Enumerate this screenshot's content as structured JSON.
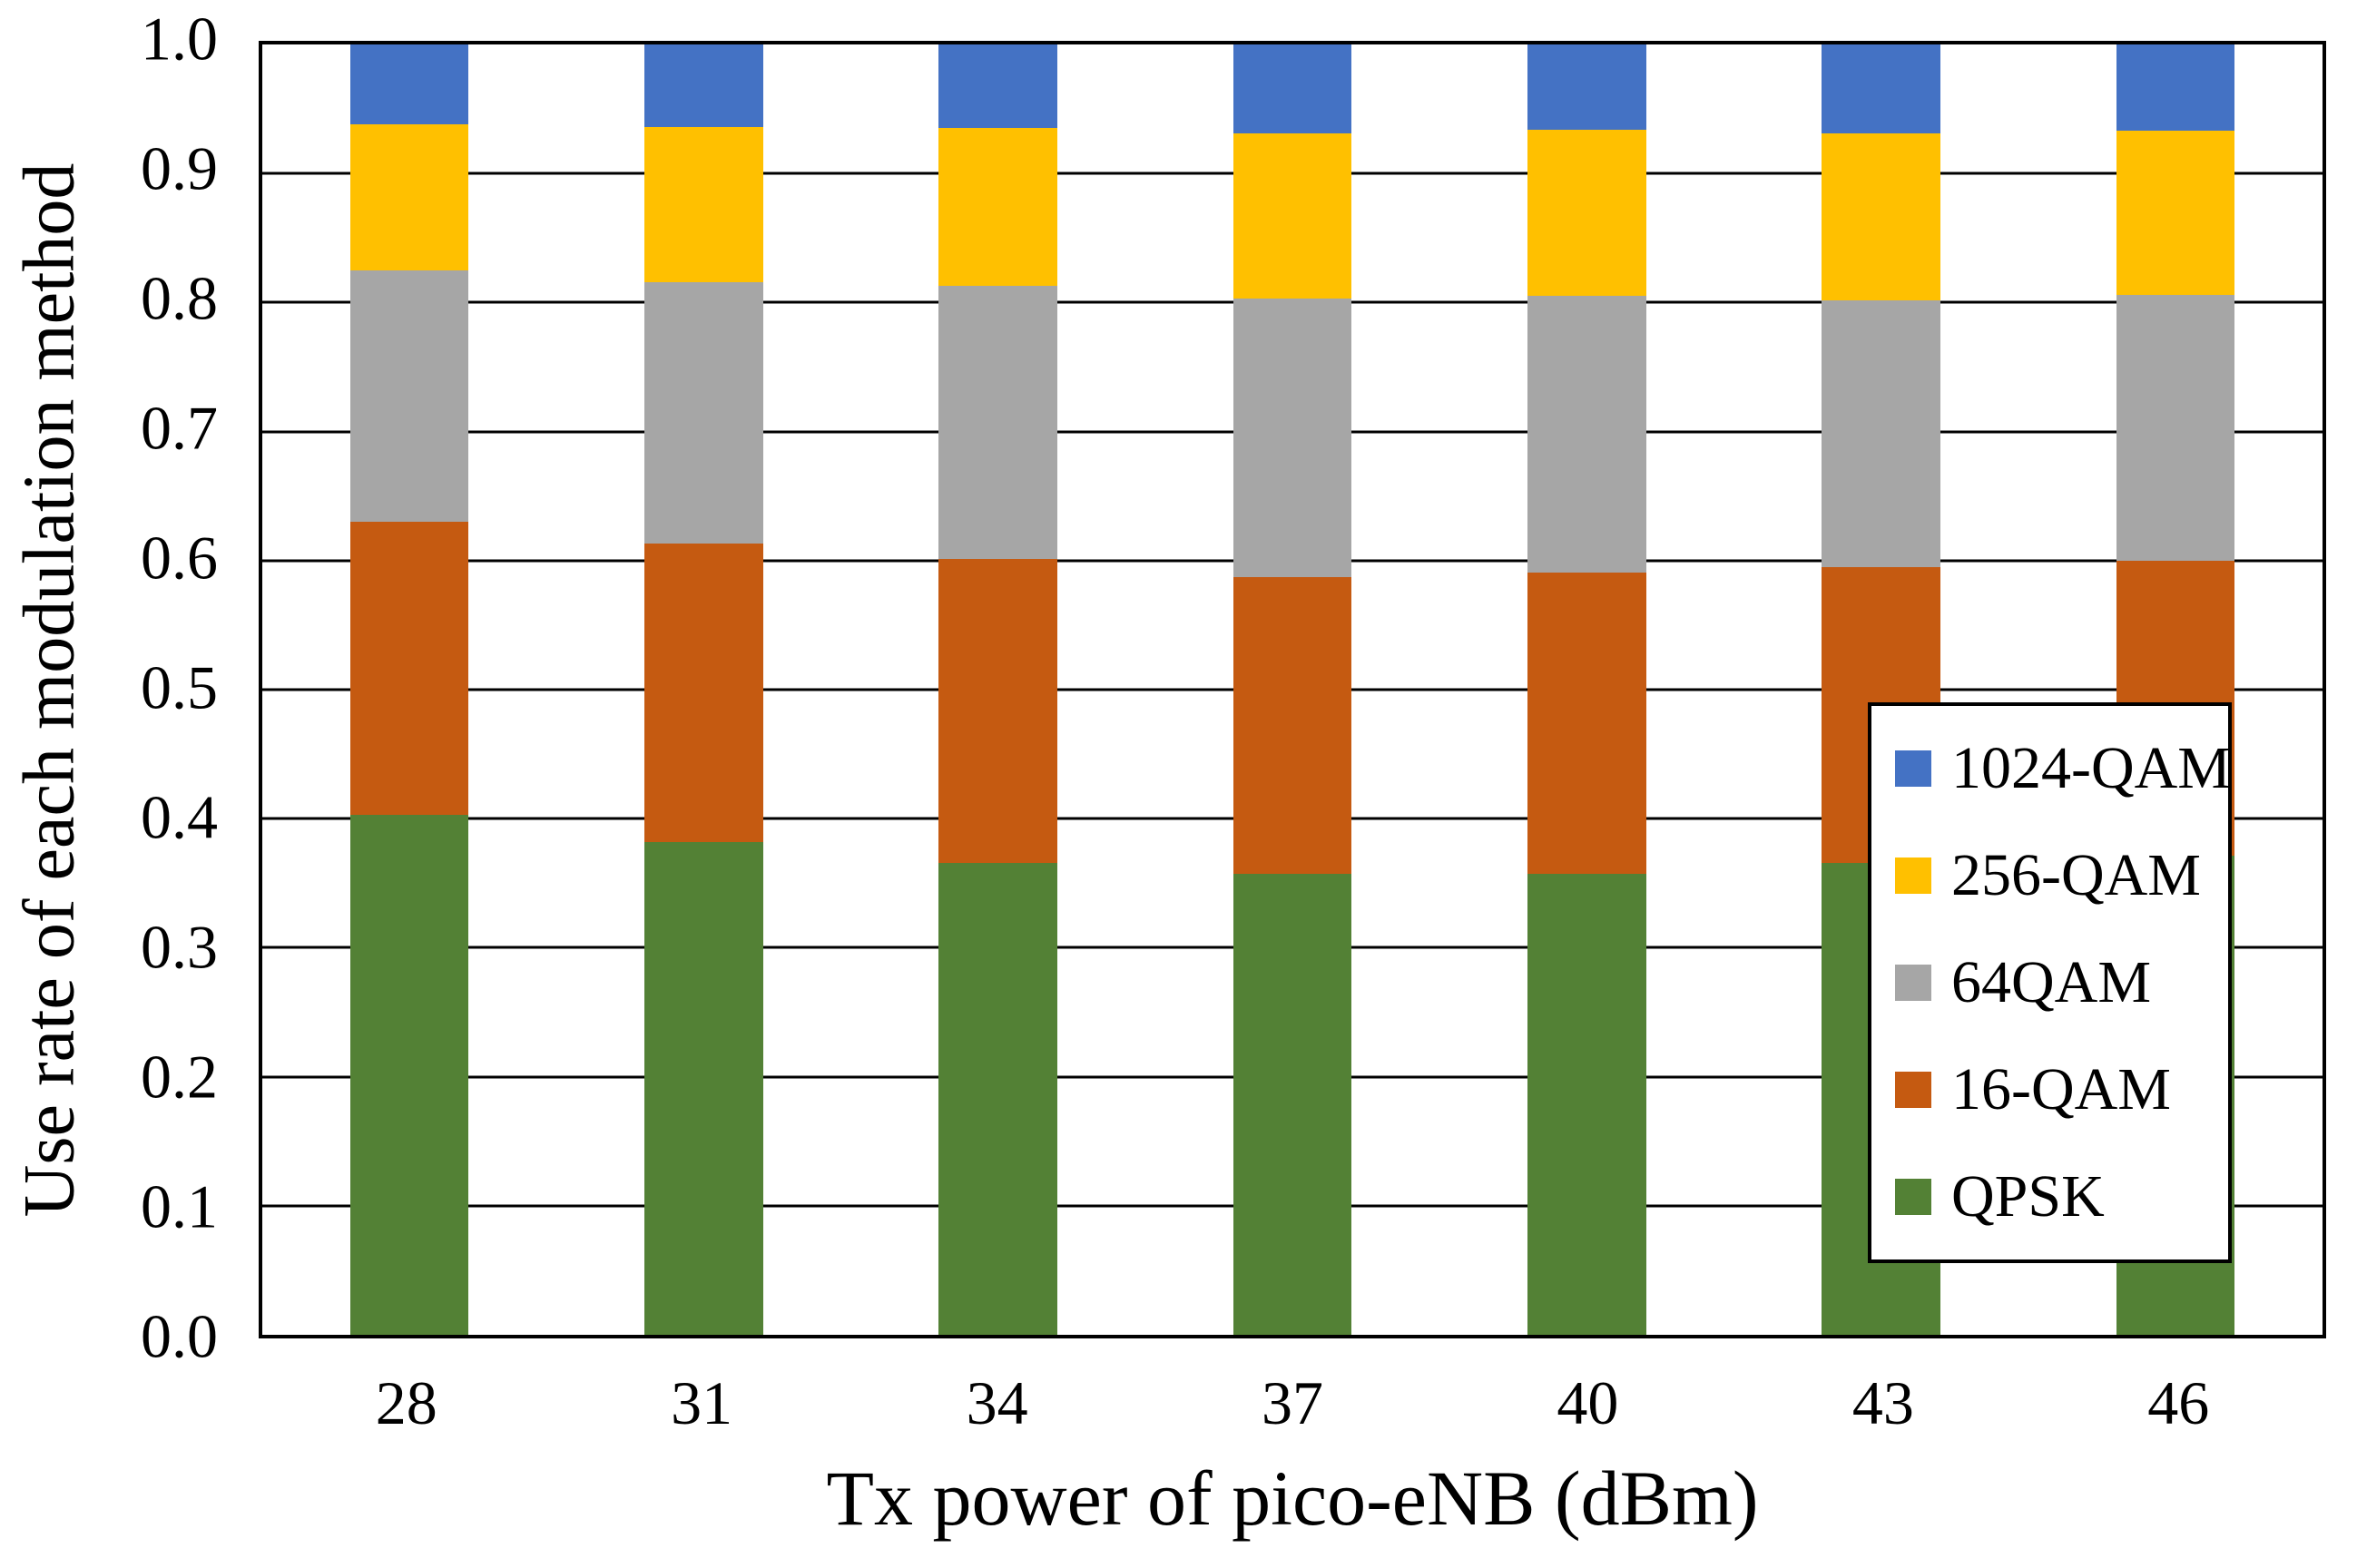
{
  "chart_data": {
    "type": "bar",
    "stacked": true,
    "title": "",
    "xlabel": "Tx power of pico-eNB (dBm)",
    "ylabel": "Use rate of each modulation method",
    "categories": [
      "28",
      "31",
      "34",
      "37",
      "40",
      "43",
      "46"
    ],
    "series": [
      {
        "name": "QPSK",
        "color": "#538135",
        "values": [
          0.403,
          0.382,
          0.366,
          0.357,
          0.357,
          0.366,
          0.371
        ]
      },
      {
        "name": "16-QAM",
        "color": "#C55A11",
        "values": [
          0.227,
          0.231,
          0.235,
          0.23,
          0.234,
          0.229,
          0.229
        ]
      },
      {
        "name": "64QAM",
        "color": "#A6A6A6",
        "values": [
          0.195,
          0.203,
          0.212,
          0.216,
          0.214,
          0.207,
          0.206
        ]
      },
      {
        "name": "256-QAM",
        "color": "#FFC000",
        "values": [
          0.113,
          0.12,
          0.122,
          0.128,
          0.129,
          0.129,
          0.127
        ]
      },
      {
        "name": "1024-QAM",
        "color": "#4472C4",
        "values": [
          0.062,
          0.064,
          0.065,
          0.069,
          0.066,
          0.069,
          0.067
        ]
      }
    ],
    "legend_order_top_to_bottom": [
      "1024-QAM",
      "256-QAM",
      "64QAM",
      "16-QAM",
      "QPSK"
    ],
    "legend_position": "inside-right",
    "ylim": [
      0.0,
      1.0
    ],
    "yticks": [
      "0.0",
      "0.1",
      "0.2",
      "0.3",
      "0.4",
      "0.5",
      "0.6",
      "0.7",
      "0.8",
      "0.9",
      "1.0"
    ],
    "grid": true,
    "gridline_color": "#000000",
    "bar_width_fraction_of_slot": 0.403
  }
}
